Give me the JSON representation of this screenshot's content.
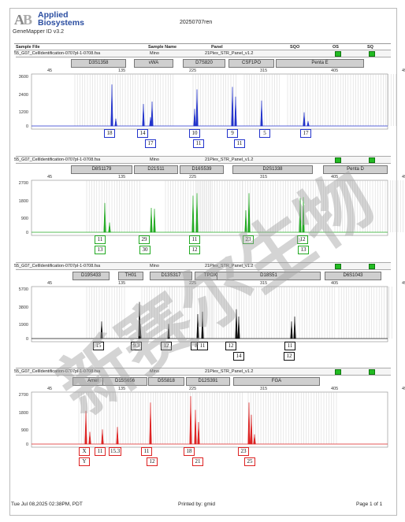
{
  "header": {
    "brand_line1": "Applied",
    "brand_line2": "Biosystems",
    "software": "GeneMapper ID v3.2",
    "run_name": "20250707ren"
  },
  "columns": [
    "Sample File",
    "Sample Name",
    "Panel",
    "SQO",
    "OS",
    "SQ"
  ],
  "panels": [
    {
      "sample_file": "55_G07_CellIdentification-0707pl-1-0708.fsa",
      "sample_name": "Mino",
      "panel": "21Plex_STR_Panel_v1.2",
      "color": "#2233cc",
      "markers": [
        "D3S1358",
        "vWA",
        "D7S820",
        "CSF1PO",
        "Penta E"
      ],
      "x_ticks": [
        "45",
        "135",
        "225",
        "315",
        "405",
        "495"
      ],
      "y_ticks": [
        "3600",
        "2400",
        "1200",
        "0"
      ],
      "alleles_row1": [
        "18",
        "14",
        "10",
        "9",
        "5",
        "17"
      ],
      "alleles_row2": [
        "17",
        "11",
        "11"
      ]
    },
    {
      "sample_file": "55_G07_CellIdentification-0707pl-1-0708.fsa",
      "sample_name": "Mino",
      "panel": "21Plex_STR_Panel_v1.2",
      "color": "#22aa22",
      "markers": [
        "D8S1179",
        "D21S11",
        "D16S539",
        "D2S1338",
        "Penta D"
      ],
      "x_ticks": [
        "45",
        "135",
        "225",
        "315",
        "405",
        "495"
      ],
      "y_ticks": [
        "2700",
        "1800",
        "900",
        "0"
      ],
      "alleles_row1": [
        "11",
        "29",
        "11",
        "23",
        "12"
      ],
      "alleles_row2": [
        "13",
        "30",
        "12",
        "13"
      ]
    },
    {
      "sample_file": "55_G07_CellIdentification-0707pl-1-0708.fsa",
      "sample_name": "Mino",
      "panel": "21Plex_STR_Panel_v1.2",
      "color": "#111111",
      "markers": [
        "D19S433",
        "TH01",
        "D13S317",
        "TPOX",
        "D18S51",
        "D6S1043"
      ],
      "x_ticks": [
        "45",
        "135",
        "225",
        "315",
        "405",
        "495"
      ],
      "y_ticks": [
        "5700",
        "3800",
        "1900",
        "0"
      ],
      "alleles_row1": [
        "15",
        "9.3",
        "12",
        "8",
        "11",
        "12",
        "11"
      ],
      "alleles_row2": [
        "14",
        "12"
      ]
    },
    {
      "sample_file": "55_G07_CellIdentification-0707pl-1-0708.fsa",
      "sample_name": "Mino",
      "panel": "21Plex_STR_Panel_v1.2",
      "color": "#dd2222",
      "markers": [
        "Amel",
        "D15S656",
        "D5S818",
        "D12S391",
        "FGA"
      ],
      "x_ticks": [
        "45",
        "135",
        "225",
        "315",
        "405",
        "495"
      ],
      "y_ticks": [
        "2700",
        "1800",
        "900",
        "0"
      ],
      "alleles_row1": [
        "X",
        "11",
        "15.3",
        "11",
        "18",
        "23"
      ],
      "alleles_row2": [
        "Y",
        "12",
        "21",
        "25"
      ]
    }
  ],
  "footer": {
    "date": "Tue Jul 08,2025 02:38PM, PDT",
    "printed_by": "Printed by: gmid",
    "page": "Page 1 of 1"
  },
  "watermark": "新赛尔生物"
}
